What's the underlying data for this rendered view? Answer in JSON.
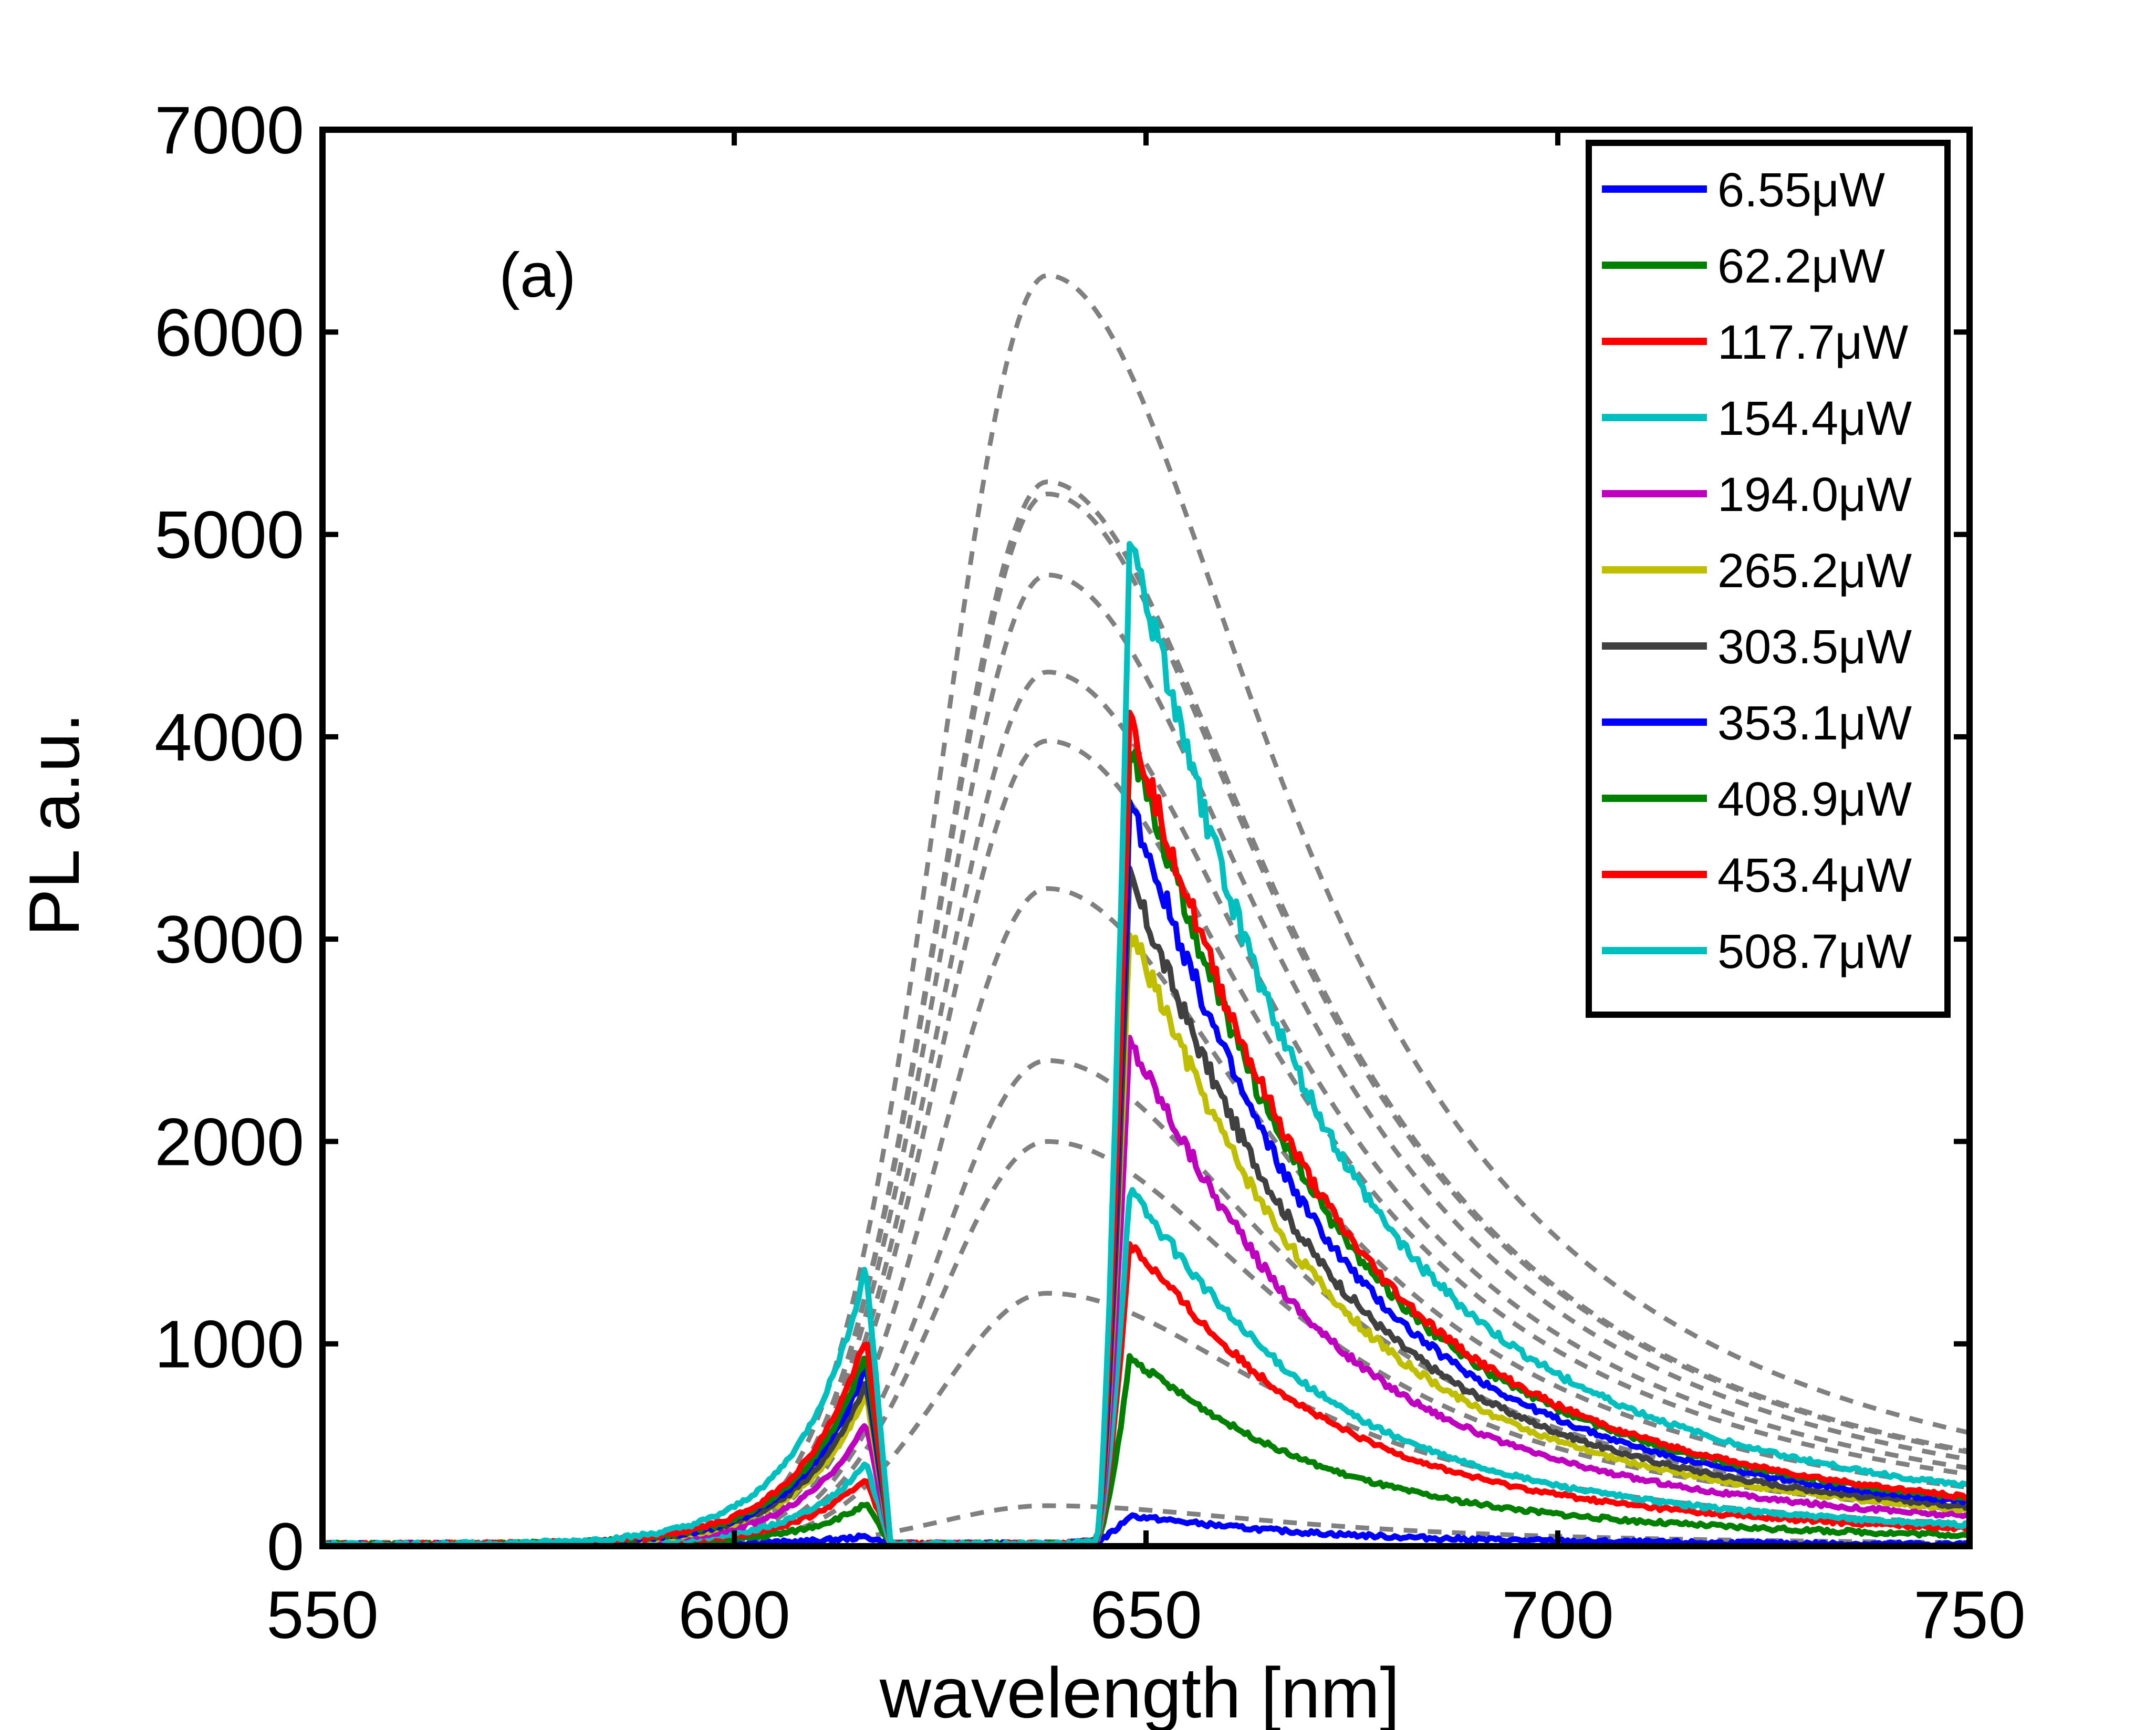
{
  "chart_data": {
    "type": "line",
    "panel_label": "(a)",
    "xlabel": "wavelength [nm]",
    "ylabel": "PL a.u.",
    "xlim": [
      550,
      750
    ],
    "ylim": [
      0,
      7000
    ],
    "xticks": [
      550,
      600,
      650,
      700,
      750
    ],
    "yticks": [
      0,
      1000,
      2000,
      3000,
      4000,
      5000,
      6000,
      7000
    ],
    "grid": false,
    "legend_position": "top-right",
    "series": [
      {
        "name": "6.55μW",
        "color": "#0000ff",
        "peak": 150,
        "left_peak": 40
      },
      {
        "name": "62.2μW",
        "color": "#008000",
        "peak": 930,
        "left_peak": 200
      },
      {
        "name": "117.7μW",
        "color": "#ff0000",
        "peak": 1500,
        "left_peak": 330
      },
      {
        "name": "154.4μW",
        "color": "#00bfbf",
        "peak": 1760,
        "left_peak": 400
      },
      {
        "name": "194.0μW",
        "color": "#bf00bf",
        "peak": 2500,
        "left_peak": 600
      },
      {
        "name": "265.2μW",
        "color": "#bfbf00",
        "peak": 3050,
        "left_peak": 750
      },
      {
        "name": "303.5μW",
        "color": "#404040",
        "peak": 3300,
        "left_peak": 800
      },
      {
        "name": "353.1μW",
        "color": "#0000ff",
        "peak": 3680,
        "left_peak": 880
      },
      {
        "name": "408.9μW",
        "color": "#008000",
        "peak": 3980,
        "left_peak": 950
      },
      {
        "name": "453.4μW",
        "color": "#ff0000",
        "peak": 4080,
        "left_peak": 1030
      },
      {
        "name": "508.7μW",
        "color": "#00bfbf",
        "peak": 4980,
        "left_peak": 1380
      }
    ],
    "fit_curves": {
      "style": "dashed",
      "color": "#808080",
      "center": 638,
      "peaks": [
        200,
        1250,
        2000,
        2400,
        3250,
        3980,
        4320,
        4800,
        5200,
        5260,
        6280
      ]
    }
  }
}
